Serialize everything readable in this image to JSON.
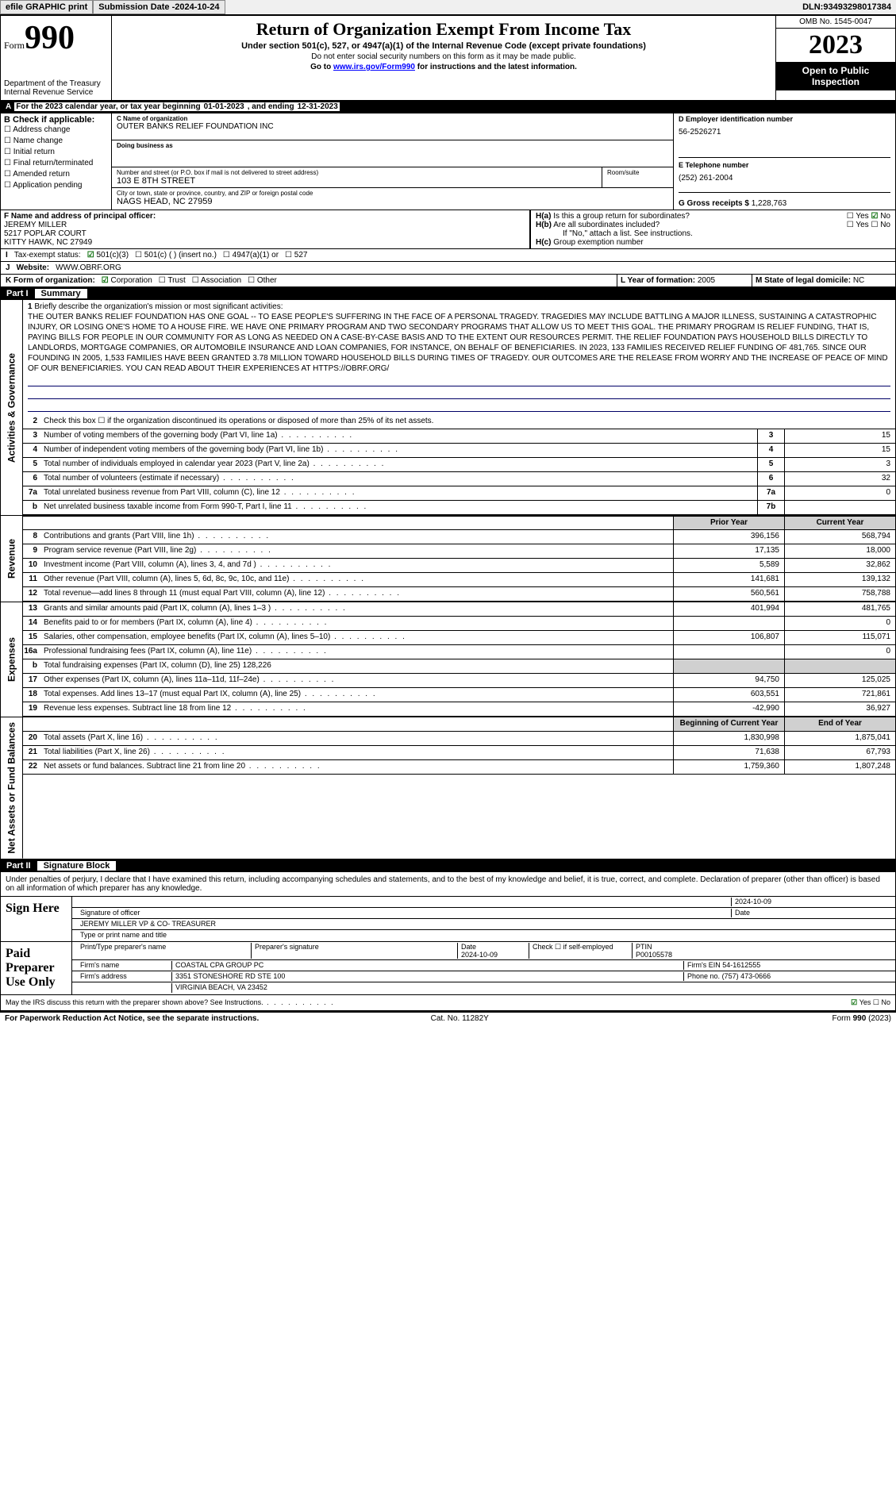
{
  "topbar": {
    "efile": "efile GRAPHIC print",
    "submission_label": "Submission Date - ",
    "submission_date": "2024-10-24",
    "dln_label": "DLN: ",
    "dln": "93493298017384"
  },
  "header": {
    "form_word": "Form",
    "form_num": "990",
    "dept": "Department of the Treasury\nInternal Revenue Service",
    "title": "Return of Organization Exempt From Income Tax",
    "sub": "Under section 501(c), 527, or 4947(a)(1) of the Internal Revenue Code (except private foundations)",
    "note1": "Do not enter social security numbers on this form as it may be made public.",
    "note2_pre": "Go to ",
    "note2_link": "www.irs.gov/Form990",
    "note2_post": " for instructions and the latest information.",
    "omb": "OMB No. 1545-0047",
    "year": "2023",
    "open": "Open to Public Inspection"
  },
  "A": {
    "text": "For the 2023 calendar year, or tax year beginning ",
    "begin": "01-01-2023",
    "mid": " , and ending ",
    "end": "12-31-2023"
  },
  "B": {
    "label": "B Check if applicable:",
    "items": [
      "Address change",
      "Name change",
      "Initial return",
      "Final return/terminated",
      "Amended return",
      "Application pending"
    ]
  },
  "C": {
    "name_lbl": "C Name of organization",
    "name": "OUTER BANKS RELIEF FOUNDATION INC",
    "dba_lbl": "Doing business as",
    "addr_lbl": "Number and street (or P.O. box if mail is not delivered to street address)",
    "addr": "103 E 8TH STREET",
    "room_lbl": "Room/suite",
    "city_lbl": "City or town, state or province, country, and ZIP or foreign postal code",
    "city": "NAGS HEAD, NC  27959"
  },
  "D": {
    "lbl": "D Employer identification number",
    "val": "56-2526271"
  },
  "E": {
    "lbl": "E Telephone number",
    "val": "(252) 261-2004"
  },
  "G": {
    "lbl": "G Gross receipts $ ",
    "val": "1,228,763"
  },
  "F": {
    "lbl": "F  Name and address of principal officer:",
    "name": "JEREMY MILLER",
    "addr1": "5217 POPLAR COURT",
    "addr2": "KITTY HAWK, NC  27949"
  },
  "H": {
    "a": "Is this a group return for subordinates?",
    "a_yes": "Yes",
    "a_no": "No",
    "b": "Are all subordinates included?",
    "b_note": "If \"No,\" attach a list. See instructions.",
    "c": "Group exemption number"
  },
  "I": {
    "lbl": "Tax-exempt status:",
    "opts": [
      "501(c)(3)",
      "501(c) (  ) (insert no.)",
      "4947(a)(1) or",
      "527"
    ]
  },
  "J": {
    "lbl": "Website:",
    "val": "WWW.OBRF.ORG"
  },
  "K": {
    "lbl": "K Form of organization:",
    "opts": [
      "Corporation",
      "Trust",
      "Association",
      "Other"
    ]
  },
  "L": {
    "lbl": "L Year of formation: ",
    "val": "2005"
  },
  "M": {
    "lbl": "M State of legal domicile: ",
    "val": "NC"
  },
  "part1": {
    "num": "Part I",
    "name": "Summary"
  },
  "mission": {
    "lbl": "Briefly describe the organization's mission or most significant activities:",
    "text": "THE OUTER BANKS RELIEF FOUNDATION HAS ONE GOAL -- TO EASE PEOPLE'S SUFFERING IN THE FACE OF A PERSONAL TRAGEDY. TRAGEDIES MAY INCLUDE BATTLING A MAJOR ILLNESS, SUSTAINING A CATASTROPHIC INJURY, OR LOSING ONE'S HOME TO A HOUSE FIRE. WE HAVE ONE PRIMARY PROGRAM AND TWO SECONDARY PROGRAMS THAT ALLOW US TO MEET THIS GOAL. THE PRIMARY PROGRAM IS RELIEF FUNDING, THAT IS, PAYING BILLS FOR PEOPLE IN OUR COMMUNITY FOR AS LONG AS NEEDED ON A CASE-BY-CASE BASIS AND TO THE EXTENT OUR RESOURCES PERMIT. THE RELIEF FOUNDATION PAYS HOUSEHOLD BILLS DIRECTLY TO LANDLORDS, MORTGAGE COMPANIES, OR AUTOMOBILE INSURANCE AND LOAN COMPANIES, FOR INSTANCE, ON BEHALF OF BENEFICIARIES. IN 2023, 133 FAMILIES RECEIVED RELIEF FUNDING OF 481,765. SINCE OUR FOUNDING IN 2005, 1,533 FAMILIES HAVE BEEN GRANTED 3.78 MILLION TOWARD HOUSEHOLD BILLS DURING TIMES OF TRAGEDY. OUR OUTCOMES ARE THE RELEASE FROM WORRY AND THE INCREASE OF PEACE OF MIND OF OUR BENEFICIARIES. YOU CAN READ ABOUT THEIR EXPERIENCES AT HTTPS://OBRF.ORG/"
  },
  "lines_gov": [
    {
      "n": "2",
      "t": "Check this box ☐  if the organization discontinued its operations or disposed of more than 25% of its net assets."
    },
    {
      "n": "3",
      "t": "Number of voting members of the governing body (Part VI, line 1a)",
      "box": "3",
      "v": "15"
    },
    {
      "n": "4",
      "t": "Number of independent voting members of the governing body (Part VI, line 1b)",
      "box": "4",
      "v": "15"
    },
    {
      "n": "5",
      "t": "Total number of individuals employed in calendar year 2023 (Part V, line 2a)",
      "box": "5",
      "v": "3"
    },
    {
      "n": "6",
      "t": "Total number of volunteers (estimate if necessary)",
      "box": "6",
      "v": "32"
    },
    {
      "n": "7a",
      "t": "Total unrelated business revenue from Part VIII, column (C), line 12",
      "box": "7a",
      "v": "0"
    },
    {
      "n": "b",
      "t": "Net unrelated business taxable income from Form 990-T, Part I, line 11",
      "box": "7b",
      "v": ""
    }
  ],
  "col_hdrs": {
    "prior": "Prior Year",
    "current": "Current Year"
  },
  "lines_rev": [
    {
      "n": "8",
      "t": "Contributions and grants (Part VIII, line 1h)",
      "p": "396,156",
      "c": "568,794"
    },
    {
      "n": "9",
      "t": "Program service revenue (Part VIII, line 2g)",
      "p": "17,135",
      "c": "18,000"
    },
    {
      "n": "10",
      "t": "Investment income (Part VIII, column (A), lines 3, 4, and 7d )",
      "p": "5,589",
      "c": "32,862"
    },
    {
      "n": "11",
      "t": "Other revenue (Part VIII, column (A), lines 5, 6d, 8c, 9c, 10c, and 11e)",
      "p": "141,681",
      "c": "139,132"
    },
    {
      "n": "12",
      "t": "Total revenue—add lines 8 through 11 (must equal Part VIII, column (A), line 12)",
      "p": "560,561",
      "c": "758,788"
    }
  ],
  "lines_exp": [
    {
      "n": "13",
      "t": "Grants and similar amounts paid (Part IX, column (A), lines 1–3 )",
      "p": "401,994",
      "c": "481,765"
    },
    {
      "n": "14",
      "t": "Benefits paid to or for members (Part IX, column (A), line 4)",
      "p": "",
      "c": "0"
    },
    {
      "n": "15",
      "t": "Salaries, other compensation, employee benefits (Part IX, column (A), lines 5–10)",
      "p": "106,807",
      "c": "115,071"
    },
    {
      "n": "16a",
      "t": "Professional fundraising fees (Part IX, column (A), line 11e)",
      "p": "",
      "c": "0"
    },
    {
      "n": "b",
      "t": "Total fundraising expenses (Part IX, column (D), line 25) 128,226",
      "shade": true
    },
    {
      "n": "17",
      "t": "Other expenses (Part IX, column (A), lines 11a–11d, 11f–24e)",
      "p": "94,750",
      "c": "125,025"
    },
    {
      "n": "18",
      "t": "Total expenses. Add lines 13–17 (must equal Part IX, column (A), line 25)",
      "p": "603,551",
      "c": "721,861"
    },
    {
      "n": "19",
      "t": "Revenue less expenses. Subtract line 18 from line 12",
      "p": "-42,990",
      "c": "36,927"
    }
  ],
  "col_hdrs2": {
    "prior": "Beginning of Current Year",
    "current": "End of Year"
  },
  "lines_net": [
    {
      "n": "20",
      "t": "Total assets (Part X, line 16)",
      "p": "1,830,998",
      "c": "1,875,041"
    },
    {
      "n": "21",
      "t": "Total liabilities (Part X, line 26)",
      "p": "71,638",
      "c": "67,793"
    },
    {
      "n": "22",
      "t": "Net assets or fund balances. Subtract line 21 from line 20",
      "p": "1,759,360",
      "c": "1,807,248"
    }
  ],
  "vtabs": {
    "gov": "Activities & Governance",
    "rev": "Revenue",
    "exp": "Expenses",
    "net": "Net Assets or Fund Balances"
  },
  "part2": {
    "num": "Part II",
    "name": "Signature Block"
  },
  "sig": {
    "decl": "Under penalties of perjury, I declare that I have examined this return, including accompanying schedules and statements, and to the best of my knowledge and belief, it is true, correct, and complete. Declaration of preparer (other than officer) is based on all information of which preparer has any knowledge.",
    "sign_here": "Sign Here",
    "sig_officer": "Signature of officer",
    "date": "Date",
    "date_val": "2024-10-09",
    "name_title": "JEREMY MILLER  VP & CO- TREASURER",
    "type_name": "Type or print name and title",
    "paid": "Paid Preparer Use Only",
    "prep_name_lbl": "Print/Type preparer's name",
    "prep_sig_lbl": "Preparer's signature",
    "prep_date_lbl": "Date",
    "prep_date": "2024-10-09",
    "self_emp": "Check ☐ if self-employed",
    "ptin_lbl": "PTIN",
    "ptin": "P00105578",
    "firm_name_lbl": "Firm's name",
    "firm_name": "COASTAL CPA GROUP PC",
    "firm_ein_lbl": "Firm's EIN",
    "firm_ein": "54-1612555",
    "firm_addr_lbl": "Firm's address",
    "firm_addr1": "3351 STONESHORE RD STE 100",
    "firm_addr2": "VIRGINIA BEACH, VA  23452",
    "phone_lbl": "Phone no.",
    "phone": "(757) 473-0666",
    "discuss": "May the IRS discuss this return with the preparer shown above? See Instructions.",
    "yes": "Yes",
    "no": "No"
  },
  "footer": {
    "left": "For Paperwork Reduction Act Notice, see the separate instructions.",
    "mid": "Cat. No. 11282Y",
    "right": "Form 990 (2023)"
  }
}
